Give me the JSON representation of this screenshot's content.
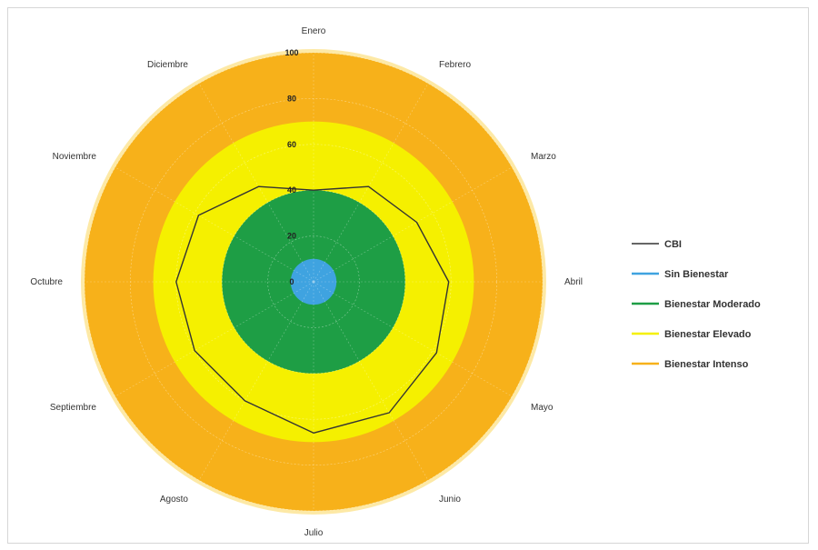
{
  "chart_data": {
    "type": "radar",
    "months": [
      "Enero",
      "Febrero",
      "Marzo",
      "Abril",
      "Mayo",
      "Junio",
      "Julio",
      "Agosto",
      "Septiembre",
      "Octubre",
      "Noviembre",
      "Diciembre"
    ],
    "r_ticks": [
      0,
      20,
      40,
      60,
      80,
      100
    ],
    "rlim": [
      0,
      100
    ],
    "zones": [
      {
        "name": "Sin Bienestar",
        "from": 0,
        "to": 10,
        "color": "#3fa3e0"
      },
      {
        "name": "Bienestar Moderado",
        "from": 10,
        "to": 40,
        "color": "#1e9e45"
      },
      {
        "name": "Bienestar Elevado",
        "from": 40,
        "to": 70,
        "color": "#f5f000"
      },
      {
        "name": "Bienestar Intenso",
        "from": 70,
        "to": 100,
        "color": "#f7b11a"
      }
    ],
    "series": [
      {
        "name": "CBI",
        "color": "#333333",
        "values": [
          40,
          48,
          52,
          59,
          62,
          66,
          66,
          60,
          60,
          60,
          58,
          48
        ]
      }
    ],
    "legend_position": "right",
    "grid": true
  }
}
